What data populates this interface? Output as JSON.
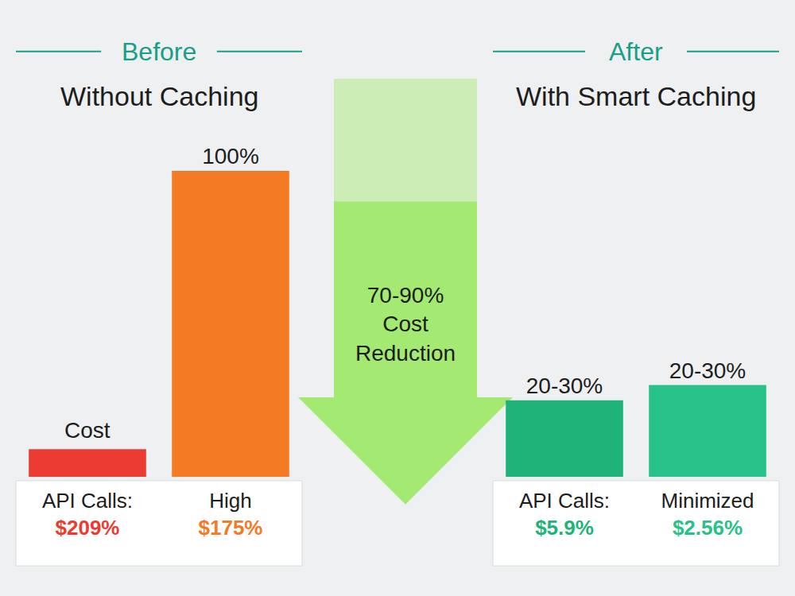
{
  "chart_data": [
    {
      "type": "bar",
      "heading": "Before",
      "title": "Without Caching",
      "categories": [
        "API Calls:",
        "High"
      ],
      "notes": [
        "$209%",
        "$175%"
      ],
      "values": [
        9,
        100
      ],
      "value_labels": [
        null,
        "100%"
      ],
      "annotations": [
        {
          "text": "Cost",
          "category": 0
        }
      ],
      "colors": [
        "#ec3b32",
        "#f47a24"
      ],
      "ylim": [
        0,
        100
      ],
      "yticks": [],
      "tick_labels": "x",
      "grid": false,
      "data_labels": true
    },
    {
      "type": "bar",
      "heading": "After",
      "title": "With Smart Caching",
      "categories": [
        "API Calls:",
        "Minimized"
      ],
      "notes": [
        "$5.9%",
        "$2.56%"
      ],
      "values": [
        25,
        30
      ],
      "value_labels": [
        "20-30%",
        "20-30%"
      ],
      "colors": [
        "#1fb37a",
        "#27c289"
      ],
      "ylim": [
        0,
        100
      ],
      "yticks": [],
      "tick_labels": "x",
      "grid": false,
      "data_labels": true
    }
  ],
  "annotations": [
    "70-90% Cost Reduction"
  ]
}
